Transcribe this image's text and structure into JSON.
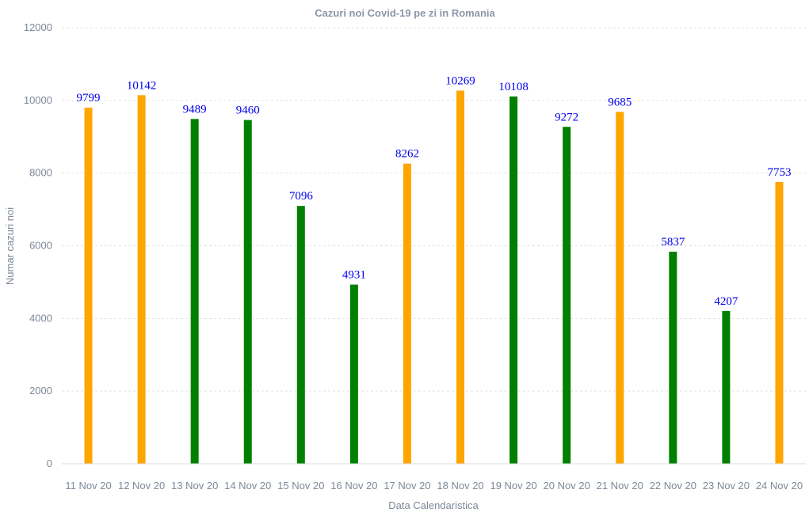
{
  "chart_data": {
    "type": "bar",
    "title": "Cazuri noi Covid-19 pe zi in Romania",
    "xlabel": "Data Calendaristica",
    "ylabel": "Numar cazuri noi",
    "ylim": [
      0,
      12000
    ],
    "yticks": [
      0,
      2000,
      4000,
      6000,
      8000,
      10000,
      12000
    ],
    "grid": true,
    "categories": [
      "11 Nov 20",
      "12 Nov 20",
      "13 Nov 20",
      "14 Nov 20",
      "15 Nov 20",
      "16 Nov 20",
      "17 Nov 20",
      "18 Nov 20",
      "19 Nov 20",
      "20 Nov 20",
      "21 Nov 20",
      "22 Nov 20",
      "23 Nov 20",
      "24 Nov 20"
    ],
    "values": [
      9799,
      10142,
      9489,
      9460,
      7096,
      4931,
      8262,
      10269,
      10108,
      9272,
      9685,
      5837,
      4207,
      7753
    ],
    "bar_colors": [
      "#FFA500",
      "#FFA500",
      "#008000",
      "#008000",
      "#008000",
      "#008000",
      "#FFA500",
      "#FFA500",
      "#008000",
      "#008000",
      "#FFA500",
      "#008000",
      "#008000",
      "#FFA500"
    ],
    "data_label_color": "#0000EE"
  }
}
